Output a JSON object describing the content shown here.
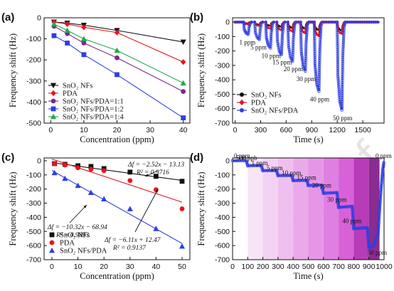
{
  "colors": {
    "black": "#111111",
    "red": "#e8141e",
    "purple": "#7b2a8c",
    "blue": "#2f3ee0",
    "green": "#1faa4a",
    "watermark": "#e4e4e4"
  },
  "watermark": "proof",
  "chart_data": [
    {
      "id": "a",
      "type": "scatter",
      "panel_label": "(a)",
      "xlabel": "Concentration (ppm)",
      "ylabel": "Frequency shift (Hz)",
      "xlim": [
        -2,
        42
      ],
      "ylim": [
        -500,
        0
      ],
      "xticks": [
        0,
        10,
        20,
        30,
        40
      ],
      "yticks": [
        -500,
        -400,
        -300,
        -200,
        -100,
        0
      ],
      "legend_position": "bottom-left",
      "series": [
        {
          "name": "SnO₂ NFs",
          "color": "#111111",
          "marker": "tri-down",
          "x": [
            1,
            5,
            10,
            20,
            40
          ],
          "y": [
            -20,
            -25,
            -35,
            -60,
            -115
          ]
        },
        {
          "name": "PDA",
          "color": "#e8141e",
          "marker": "diamond",
          "x": [
            1,
            5,
            10,
            20,
            40
          ],
          "y": [
            -20,
            -30,
            -45,
            -70,
            -210
          ]
        },
        {
          "name": "SnO₂ NFs/PDA=1:1",
          "color": "#7b2a8c",
          "marker": "circle",
          "x": [
            1,
            5,
            10,
            20,
            40
          ],
          "y": [
            -40,
            -75,
            -120,
            -190,
            -350
          ]
        },
        {
          "name": "SnO₂ NFs/PDA=1:2",
          "color": "#2f3ee0",
          "marker": "square",
          "x": [
            1,
            5,
            10,
            20,
            40
          ],
          "y": [
            -85,
            -120,
            -175,
            -270,
            -475
          ]
        },
        {
          "name": "SnO₂ NFs/PDA=1:4",
          "color": "#1faa4a",
          "marker": "tri-up",
          "x": [
            1,
            5,
            10,
            20,
            40
          ],
          "y": [
            -30,
            -60,
            -100,
            -155,
            -310
          ]
        }
      ]
    },
    {
      "id": "b",
      "type": "line",
      "panel_label": "(b)",
      "xlabel": "Time (s)",
      "ylabel": "Frequency shift (Hz)",
      "xlim": [
        -30,
        1750
      ],
      "ylim": [
        -700,
        30
      ],
      "xticks": [
        0,
        300,
        600,
        900,
        1200,
        1500,
        1800
      ],
      "yticks": [
        -700,
        -600,
        -500,
        -400,
        -300,
        -200,
        -100,
        0
      ],
      "legend_position": "bottom-left",
      "pulses": [
        {
          "start": 100,
          "label": "1 ppm",
          "depth": {
            "black": 10,
            "red": 15,
            "blue": 85
          }
        },
        {
          "start": 230,
          "label": "5 ppm",
          "depth": {
            "black": 18,
            "red": 25,
            "blue": 120
          }
        },
        {
          "start": 360,
          "label": "10 ppm",
          "depth": {
            "black": 25,
            "red": 45,
            "blue": 180
          }
        },
        {
          "start": 490,
          "label": "15 ppm",
          "depth": {
            "black": 32,
            "red": 55,
            "blue": 225
          }
        },
        {
          "start": 620,
          "label": "20 ppm",
          "depth": {
            "black": 40,
            "red": 65,
            "blue": 270
          }
        },
        {
          "start": 770,
          "label": "30 ppm",
          "depth": {
            "black": 45,
            "red": 75,
            "blue": 340
          }
        },
        {
          "start": 930,
          "label": "40 ppm",
          "depth": {
            "black": 55,
            "red": 95,
            "blue": 480
          }
        },
        {
          "start": 1200,
          "label": "50 ppm",
          "depth": {
            "black": 60,
            "red": 80,
            "blue": 610
          }
        }
      ],
      "series": [
        {
          "name": "SnO₂ NFs",
          "key": "black",
          "color": "#111111"
        },
        {
          "name": "PDA",
          "key": "red",
          "color": "#e8141e"
        },
        {
          "name": "SnO₂ NFs/PDA",
          "key": "blue",
          "color": "#2f3ee0"
        }
      ]
    },
    {
      "id": "c",
      "type": "scatter",
      "panel_label": "(c)",
      "xlabel": "Concentration (ppm)",
      "ylabel": "Frequency shift (Hz)",
      "xlim": [
        -3,
        53
      ],
      "ylim": [
        -700,
        20
      ],
      "xticks": [
        0,
        10,
        20,
        30,
        40,
        50
      ],
      "yticks": [
        -700,
        -600,
        -500,
        -400,
        -300,
        -200,
        -100,
        0
      ],
      "legend_position": "bottom-left",
      "series": [
        {
          "name": "SnO₂ NFs",
          "color": "#111111",
          "marker": "square",
          "x": [
            1,
            5,
            10,
            15,
            20,
            30,
            40,
            50
          ],
          "y": [
            -20,
            -25,
            -35,
            -40,
            -55,
            -80,
            -110,
            -145
          ],
          "fit": {
            "slope": -2.52,
            "intercept": -13.13
          }
        },
        {
          "name": "PDA",
          "color": "#e8141e",
          "marker": "circle",
          "x": [
            1,
            5,
            10,
            15,
            20,
            30,
            40,
            50
          ],
          "y": [
            -20,
            -30,
            -50,
            -60,
            -70,
            -140,
            -205,
            -340
          ],
          "fit": {
            "slope": -6.11,
            "intercept": 12.47
          }
        },
        {
          "name": "SnO₂ NFs/PDA",
          "color": "#2f3ee0",
          "marker": "tri-up",
          "x": [
            1,
            5,
            10,
            15,
            20,
            30,
            40,
            50
          ],
          "y": [
            -85,
            -125,
            -175,
            -225,
            -270,
            -340,
            -480,
            -605
          ],
          "fit": {
            "slope": -10.32,
            "intercept": -68.94
          }
        }
      ],
      "annotations": [
        {
          "line1": "Δf = −2.52x − 13.13",
          "line2": "R² = 0.9716"
        },
        {
          "line1": "Δf = −10.32x − 68.94",
          "line2": "R² = 0.9893"
        },
        {
          "line1": "Δf = −6.11x + 12.47",
          "line2": "R² = 0.9137"
        }
      ]
    },
    {
      "id": "d",
      "type": "line",
      "panel_label": "(d)",
      "xlabel": "Time (s)",
      "ylabel": "Frequency shift (Hz)",
      "xlim": [
        0,
        1000
      ],
      "ylim": [
        -700,
        20
      ],
      "xticks": [
        0,
        100,
        200,
        300,
        400,
        500,
        600,
        700,
        800,
        900,
        1000
      ],
      "yticks": [
        -700,
        -600,
        -500,
        -400,
        -300,
        -200,
        -100,
        0
      ],
      "series_color": "#2f3ee0",
      "bands": [
        {
          "start": 0,
          "end": 100,
          "color": "#ffffff"
        },
        {
          "start": 100,
          "end": 200,
          "color": "#f7e4f7"
        },
        {
          "start": 200,
          "end": 300,
          "color": "#f3d2f3"
        },
        {
          "start": 300,
          "end": 400,
          "color": "#efc0ef"
        },
        {
          "start": 400,
          "end": 500,
          "color": "#eaaaea"
        },
        {
          "start": 500,
          "end": 600,
          "color": "#e596e6"
        },
        {
          "start": 600,
          "end": 700,
          "color": "#e07fe2"
        },
        {
          "start": 700,
          "end": 800,
          "color": "#d861d8"
        },
        {
          "start": 800,
          "end": 900,
          "color": "#b73cb8"
        },
        {
          "start": 900,
          "end": 970,
          "color": "#8a2c90"
        }
      ],
      "steps": [
        {
          "t": 0,
          "v": 0,
          "label": "0 ppm"
        },
        {
          "t": 100,
          "v": -35,
          "label": "500 ppb"
        },
        {
          "t": 200,
          "v": -70,
          "label": "1 ppm"
        },
        {
          "t": 300,
          "v": -105,
          "label": "5 ppm"
        },
        {
          "t": 400,
          "v": -140,
          "label": "10 ppm"
        },
        {
          "t": 500,
          "v": -175,
          "label": "15 ppm"
        },
        {
          "t": 600,
          "v": -230,
          "label": "20 ppm"
        },
        {
          "t": 700,
          "v": -330,
          "label": "30 ppm"
        },
        {
          "t": 800,
          "v": -480,
          "label": "40 ppm"
        },
        {
          "t": 900,
          "v": -615,
          "label": "50 ppm"
        },
        {
          "t": 1000,
          "v": 0,
          "label": "0 ppm"
        }
      ]
    }
  ]
}
